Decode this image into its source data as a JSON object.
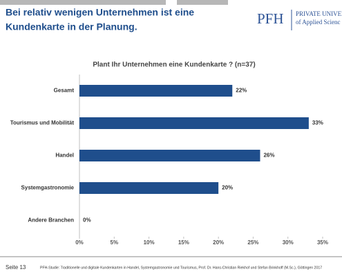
{
  "header": {
    "title": [
      "Bei relativ wenigen Unternehmen ist eine",
      "Kundenkarte in der Planung."
    ],
    "logo": {
      "mark": "PFH",
      "line1": "PRIVATE UNIVERSI",
      "line2": "of Applied Scienc"
    }
  },
  "chart_data": {
    "type": "barh",
    "title": "Plant Ihr Unternehmen eine Kundenkarte ? (n=37)",
    "categories": [
      "Gesamt",
      "Tourismus und Mobilität",
      "Handel",
      "Systemgastronomie",
      "Andere Branchen"
    ],
    "values": [
      22,
      33,
      26,
      20,
      0
    ],
    "value_labels": [
      "22%",
      "33%",
      "26%",
      "20%",
      "0%"
    ],
    "color": "#1f4e8c",
    "xlim": [
      0,
      35
    ],
    "xticks": [
      {
        "value": 0,
        "label": "0%"
      },
      {
        "value": 5,
        "label": "5%"
      },
      {
        "value": 10,
        "label": "10%"
      },
      {
        "value": 15,
        "label": "15%"
      },
      {
        "value": 20,
        "label": "20%"
      },
      {
        "value": 25,
        "label": "25%"
      },
      {
        "value": 30,
        "label": "30%"
      },
      {
        "value": 35,
        "label": "35%"
      }
    ]
  },
  "footer": {
    "page": "Seite 13",
    "source": "PFH-Studie: Traditionelle und digitale Kundenkarten in Handel, Systemgastronomie und Tourismus, Prof. Dr. Hans-Christian Riekhof und Stefan Brinkhoff (M.Sc.), Göttingen 2017"
  }
}
